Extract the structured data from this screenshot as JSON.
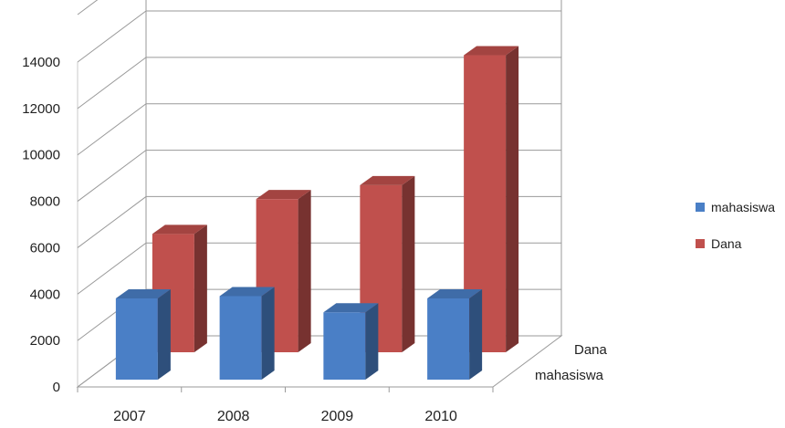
{
  "chart_data": {
    "type": "bar",
    "style": "3d-column",
    "categories": [
      "2007",
      "2008",
      "2009",
      "2010"
    ],
    "series": [
      {
        "name": "mahasiswa",
        "values": [
          3500,
          3600,
          2900,
          3500
        ],
        "color": "#4a7fc6"
      },
      {
        "name": "Dana",
        "values": [
          5100,
          6600,
          7200,
          12800
        ],
        "color": "#c0504d"
      }
    ],
    "depth_labels": [
      "Dana",
      "mahasiswa"
    ],
    "ylim": [
      0,
      14000
    ],
    "yticks": [
      "0",
      "2000",
      "4000",
      "6000",
      "8000",
      "10000",
      "12000",
      "14000"
    ],
    "grid": true,
    "legend_position": "right"
  }
}
